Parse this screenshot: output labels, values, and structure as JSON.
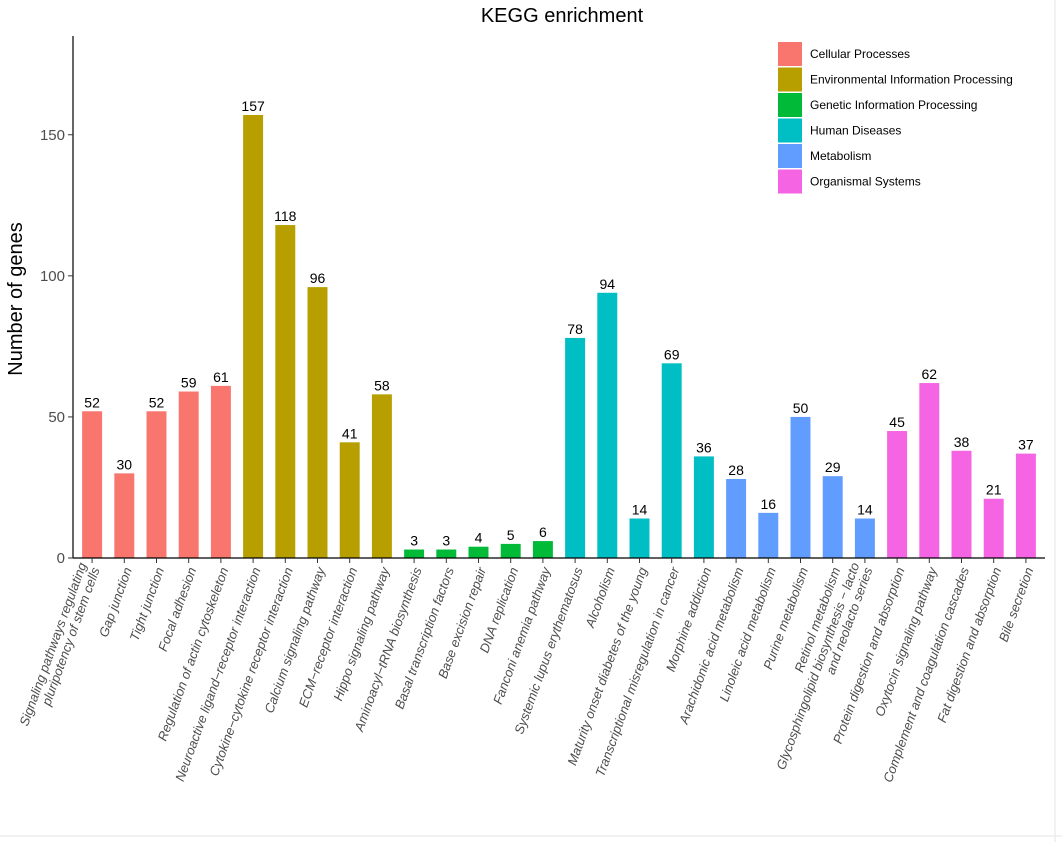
{
  "chart_data": {
    "type": "bar",
    "title": "KEGG enrichment",
    "xlabel": "",
    "ylabel": "Number of genes",
    "ylim": [
      0,
      185
    ],
    "yticks": [
      0,
      50,
      100,
      150
    ],
    "grid": false,
    "legend_position": "top-right",
    "legend": [
      {
        "name": "Cellular Processes",
        "color": "#F8766D"
      },
      {
        "name": "Environmental Information Processing",
        "color": "#B79F00"
      },
      {
        "name": "Genetic Information Processing",
        "color": "#00BA38"
      },
      {
        "name": "Human Diseases",
        "color": "#00BFC4"
      },
      {
        "name": "Metabolism",
        "color": "#619CFF"
      },
      {
        "name": "Organismal Systems",
        "color": "#F564E3"
      }
    ],
    "bars": [
      {
        "label": [
          "Signaling pathways regulating",
          "pluripotency of stem cells"
        ],
        "value": 52,
        "group": 0
      },
      {
        "label": [
          "Gap junction"
        ],
        "value": 30,
        "group": 0
      },
      {
        "label": [
          "Tight junction"
        ],
        "value": 52,
        "group": 0
      },
      {
        "label": [
          "Focal adhesion"
        ],
        "value": 59,
        "group": 0
      },
      {
        "label": [
          "Regulation of actin cytoskeleton"
        ],
        "value": 61,
        "group": 0
      },
      {
        "label": [
          "Neuroactive ligand−receptor interaction"
        ],
        "value": 157,
        "group": 1
      },
      {
        "label": [
          "Cytokine−cytokine receptor interaction"
        ],
        "value": 118,
        "group": 1
      },
      {
        "label": [
          "Calcium signaling pathway"
        ],
        "value": 96,
        "group": 1
      },
      {
        "label": [
          "ECM−receptor interaction"
        ],
        "value": 41,
        "group": 1
      },
      {
        "label": [
          "Hippo signaling pathway"
        ],
        "value": 58,
        "group": 1
      },
      {
        "label": [
          "Aminoacyl−tRNA biosynthesis"
        ],
        "value": 3,
        "group": 2
      },
      {
        "label": [
          "Basal transcription factors"
        ],
        "value": 3,
        "group": 2
      },
      {
        "label": [
          "Base excision repair"
        ],
        "value": 4,
        "group": 2
      },
      {
        "label": [
          "DNA replication"
        ],
        "value": 5,
        "group": 2
      },
      {
        "label": [
          "Fanconi anemia pathway"
        ],
        "value": 6,
        "group": 2
      },
      {
        "label": [
          "Systemic lupus erythematosus"
        ],
        "value": 78,
        "group": 3
      },
      {
        "label": [
          "Alcoholism"
        ],
        "value": 94,
        "group": 3
      },
      {
        "label": [
          "Maturity onset diabetes of the young"
        ],
        "value": 14,
        "group": 3
      },
      {
        "label": [
          "Transcriptional misregulation in cancer"
        ],
        "value": 69,
        "group": 3
      },
      {
        "label": [
          "Morphine addiction"
        ],
        "value": 36,
        "group": 3
      },
      {
        "label": [
          "Arachidonic acid metabolism"
        ],
        "value": 28,
        "group": 4
      },
      {
        "label": [
          "Linoleic acid metabolism"
        ],
        "value": 16,
        "group": 4
      },
      {
        "label": [
          "Purine metabolism"
        ],
        "value": 50,
        "group": 4
      },
      {
        "label": [
          "Retinol metabolism"
        ],
        "value": 29,
        "group": 4
      },
      {
        "label": [
          "Glycosphingolipid biosynthesis − lacto",
          "and neolacto series"
        ],
        "value": 14,
        "group": 4
      },
      {
        "label": [
          "Protein digestion and absorption"
        ],
        "value": 45,
        "group": 5
      },
      {
        "label": [
          "Oxytocin signaling pathway"
        ],
        "value": 62,
        "group": 5
      },
      {
        "label": [
          "Complement and coagulation cascades"
        ],
        "value": 38,
        "group": 5
      },
      {
        "label": [
          "Fat digestion and absorption"
        ],
        "value": 21,
        "group": 5
      },
      {
        "label": [
          "Bile secretion"
        ],
        "value": 37,
        "group": 5
      }
    ]
  }
}
